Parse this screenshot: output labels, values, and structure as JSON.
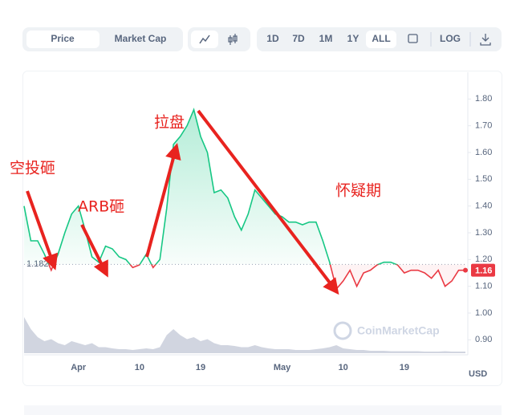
{
  "toolbar": {
    "tabs": [
      "Price",
      "Market Cap"
    ],
    "ranges": [
      "1D",
      "7D",
      "1M",
      "1Y",
      "ALL"
    ],
    "log": "LOG"
  },
  "chart_data": {
    "type": "line",
    "categories": [
      null,
      null,
      null,
      null,
      null,
      null,
      null,
      null,
      "Apr",
      null,
      null,
      null,
      null,
      null,
      null,
      null,
      null,
      "10",
      null,
      null,
      null,
      null,
      null,
      null,
      null,
      null,
      "19",
      null,
      null,
      null,
      null,
      null,
      null,
      null,
      null,
      null,
      null,
      null,
      "May",
      null,
      null,
      null,
      null,
      null,
      null,
      null,
      null,
      "10",
      null,
      null,
      null,
      null,
      null,
      null,
      null,
      null,
      "19",
      null,
      null,
      null,
      null,
      null,
      null,
      null,
      null,
      null
    ],
    "values": [
      1.4,
      1.27,
      1.27,
      1.22,
      1.16,
      1.22,
      1.3,
      1.37,
      1.4,
      1.31,
      1.21,
      1.19,
      1.25,
      1.24,
      1.21,
      1.2,
      1.17,
      1.18,
      1.22,
      1.17,
      1.2,
      1.39,
      1.63,
      1.66,
      1.7,
      1.76,
      1.66,
      1.6,
      1.45,
      1.46,
      1.43,
      1.36,
      1.31,
      1.37,
      1.46,
      1.43,
      1.4,
      1.37,
      1.36,
      1.34,
      1.34,
      1.33,
      1.34,
      1.34,
      1.27,
      1.19,
      1.09,
      1.12,
      1.16,
      1.1,
      1.15,
      1.16,
      1.18,
      1.19,
      1.19,
      1.18,
      1.15,
      1.16,
      1.16,
      1.15,
      1.13,
      1.16,
      1.1,
      1.12,
      1.16,
      1.16
    ],
    "volume": [
      90,
      60,
      40,
      30,
      35,
      25,
      20,
      30,
      25,
      20,
      25,
      15,
      15,
      12,
      10,
      10,
      8,
      10,
      12,
      10,
      15,
      45,
      60,
      45,
      35,
      40,
      30,
      35,
      25,
      20,
      20,
      18,
      15,
      15,
      20,
      15,
      12,
      10,
      10,
      10,
      8,
      8,
      8,
      10,
      12,
      15,
      20,
      12,
      10,
      8,
      8,
      6,
      6,
      6,
      5,
      5,
      5,
      5,
      5,
      4,
      4,
      4,
      5,
      4,
      4,
      4
    ],
    "volume_ylim": [
      0,
      200
    ],
    "volume_color": "#c5cad8",
    "ylim": [
      0.85,
      1.9
    ],
    "yticks": [
      {
        "value": 0.9,
        "label": "0.90"
      },
      {
        "value": 1.0,
        "label": "1.00"
      },
      {
        "value": 1.1,
        "label": "1.10"
      },
      {
        "value": 1.2,
        "label": "1.20"
      },
      {
        "value": 1.3,
        "label": "1.30"
      },
      {
        "value": 1.4,
        "label": "1.40"
      },
      {
        "value": 1.5,
        "label": "1.50"
      },
      {
        "value": 1.6,
        "label": "1.60"
      },
      {
        "value": 1.7,
        "label": "1.70"
      },
      {
        "value": 1.8,
        "label": "1.80"
      }
    ],
    "baseline": 1.182,
    "up_color": "#16c784",
    "down_color": "#ea3943",
    "unit": "USD",
    "watermark": "CoinMarketCap",
    "annotations": [
      "空投砸",
      "ARB砸",
      "拉盘",
      "怀疑期"
    ]
  }
}
